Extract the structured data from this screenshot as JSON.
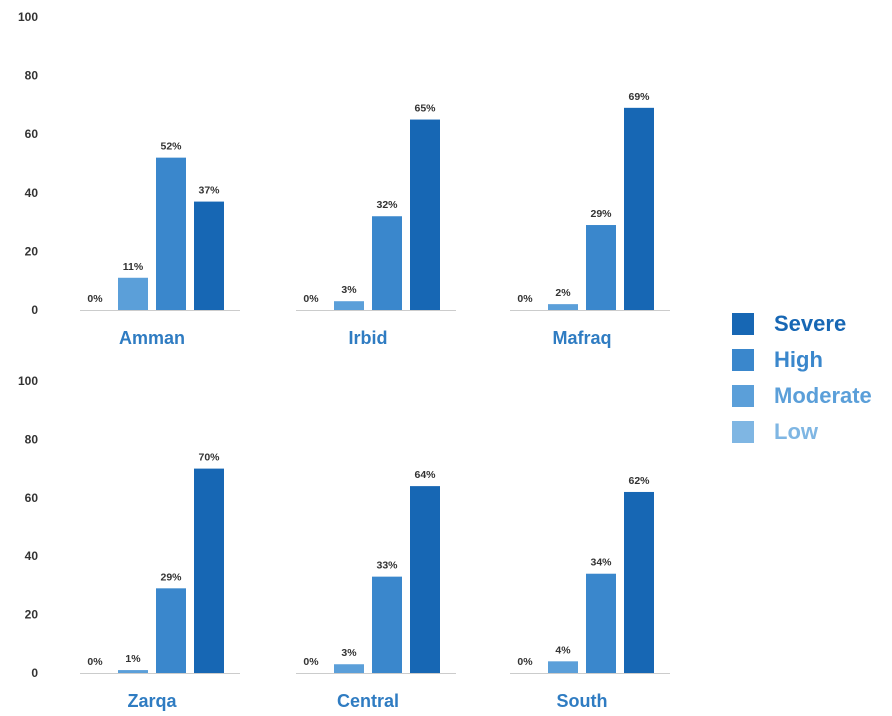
{
  "colors": {
    "Low": "#7fb6e3",
    "Moderate": "#5b9fd9",
    "High": "#3a87cc",
    "Severe": "#1767b4",
    "region_label": "#2f7cc2",
    "axis": "#cccccc"
  },
  "legend": [
    {
      "label": "Severe",
      "key": "Severe"
    },
    {
      "label": "High",
      "key": "High"
    },
    {
      "label": "Moderate",
      "key": "Moderate"
    },
    {
      "label": "Low",
      "key": "Low"
    }
  ],
  "chart_data": {
    "type": "bar",
    "series_order": [
      "Low",
      "Moderate",
      "High",
      "Severe"
    ],
    "ylim": [
      0,
      100
    ],
    "yticks": [
      0,
      20,
      40,
      60,
      80,
      100
    ],
    "panels": [
      {
        "region": "Amman",
        "values": [
          0,
          11,
          52,
          37
        ],
        "labels": [
          "0%",
          "11%",
          "52%",
          "37%"
        ]
      },
      {
        "region": "Irbid",
        "values": [
          0,
          3,
          32,
          65
        ],
        "labels": [
          "0%",
          "3%",
          "32%",
          "65%"
        ]
      },
      {
        "region": "Mafraq",
        "values": [
          0,
          2,
          29,
          69
        ],
        "labels": [
          "0%",
          "2%",
          "29%",
          "69%"
        ]
      },
      {
        "region": "Zarqa",
        "values": [
          0,
          1,
          29,
          70
        ],
        "labels": [
          "0%",
          "1%",
          "29%",
          "70%"
        ]
      },
      {
        "region": "Central",
        "values": [
          0,
          3,
          33,
          64
        ],
        "labels": [
          "0%",
          "3%",
          "33%",
          "64%"
        ]
      },
      {
        "region": "South",
        "values": [
          0,
          4,
          34,
          62
        ],
        "labels": [
          "0%",
          "4%",
          "34%",
          "62%"
        ]
      }
    ]
  }
}
